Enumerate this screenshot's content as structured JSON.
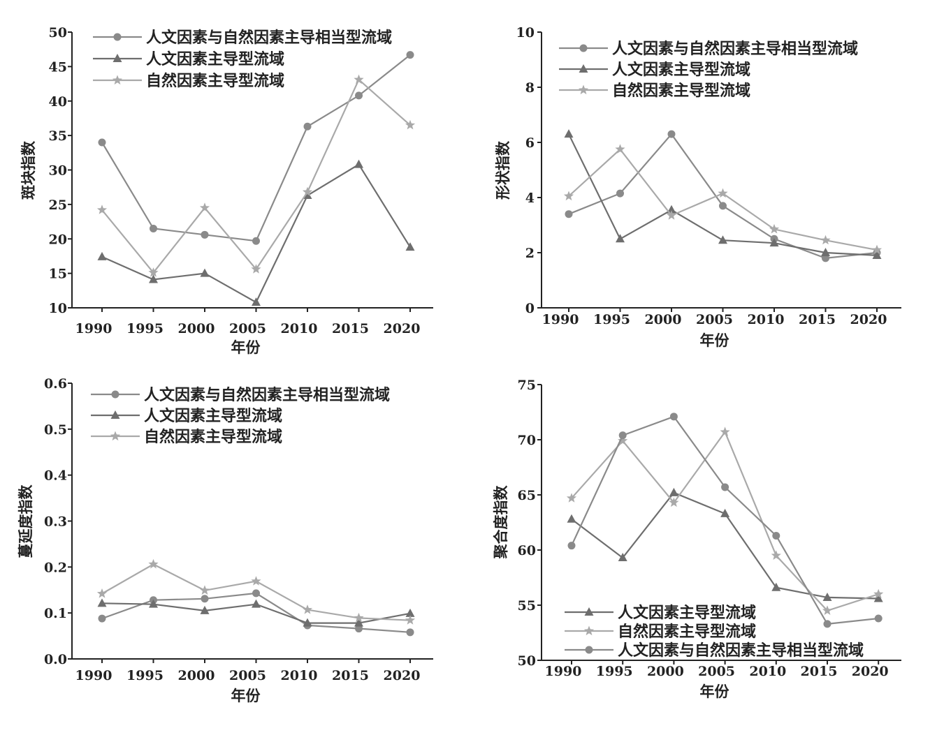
{
  "colors": {
    "series_circle": "#8a8a8a",
    "series_triangle": "#6e6e6e",
    "series_star": "#a9a9a9",
    "axis": "#222222"
  },
  "chart_data": [
    {
      "id": "patch",
      "type": "line",
      "xlabel": "年份",
      "ylabel": "斑块指数",
      "ylim": [
        10,
        50
      ],
      "yticks": [
        "10",
        "15",
        "20",
        "25",
        "30",
        "35",
        "40",
        "45",
        "50"
      ],
      "categories": [
        "1990",
        "1995",
        "2000",
        "2005",
        "2010",
        "2015",
        "2020"
      ],
      "legend_position": "top-left",
      "series": [
        {
          "name": "人文因素与自然因素主导相当型流域",
          "marker": "circle",
          "values": [
            34.0,
            21.5,
            20.6,
            19.7,
            36.3,
            40.8,
            46.7
          ]
        },
        {
          "name": "人文因素主导型流域",
          "marker": "triangle",
          "values": [
            17.4,
            14.1,
            15.0,
            10.8,
            26.3,
            30.8,
            18.8
          ]
        },
        {
          "name": "自然因素主导型流域",
          "marker": "star",
          "values": [
            24.2,
            15.1,
            24.5,
            15.6,
            26.8,
            43.1,
            36.5
          ]
        }
      ]
    },
    {
      "id": "shape",
      "type": "line",
      "xlabel": "年份",
      "ylabel": "形状指数",
      "ylim": [
        0,
        10
      ],
      "yticks": [
        "0",
        "2",
        "4",
        "6",
        "8",
        "10"
      ],
      "categories": [
        "1990",
        "1995",
        "2000",
        "2005",
        "2010",
        "2015",
        "2020"
      ],
      "legend_position": "top-left",
      "series": [
        {
          "name": "人文因素与自然因素主导相当型流域",
          "marker": "circle",
          "values": [
            3.4,
            4.15,
            6.3,
            3.7,
            2.5,
            1.8,
            2.0
          ]
        },
        {
          "name": "人文因素主导型流域",
          "marker": "triangle",
          "values": [
            6.3,
            2.5,
            3.55,
            2.45,
            2.35,
            2.0,
            1.9
          ]
        },
        {
          "name": "自然因素主导型流域",
          "marker": "star",
          "values": [
            4.05,
            5.75,
            3.35,
            4.15,
            2.85,
            2.45,
            2.1
          ]
        }
      ]
    },
    {
      "id": "spread",
      "type": "line",
      "xlabel": "年份",
      "ylabel": "蔓延度指数",
      "ylim": [
        0,
        0.6
      ],
      "yticks": [
        "0.0",
        "0.1",
        "0.2",
        "0.3",
        "0.4",
        "0.5",
        "0.6"
      ],
      "categories": [
        "1990",
        "1995",
        "2000",
        "2005",
        "2010",
        "2015",
        "2020"
      ],
      "legend_position": "top-left",
      "series": [
        {
          "name": "人文因素与自然因素主导相当型流域",
          "marker": "circle",
          "values": [
            0.088,
            0.128,
            0.131,
            0.143,
            0.073,
            0.066,
            0.058
          ]
        },
        {
          "name": "人文因素主导型流域",
          "marker": "triangle",
          "values": [
            0.121,
            0.119,
            0.105,
            0.119,
            0.078,
            0.078,
            0.099
          ]
        },
        {
          "name": "自然因素主导型流域",
          "marker": "star",
          "values": [
            0.142,
            0.206,
            0.149,
            0.169,
            0.107,
            0.089,
            0.084
          ]
        }
      ]
    },
    {
      "id": "cohesion",
      "type": "line",
      "xlabel": "年份",
      "ylabel": "聚合度指数",
      "ylim": [
        50,
        75
      ],
      "yticks": [
        "50",
        "55",
        "60",
        "65",
        "70",
        "75"
      ],
      "categories": [
        "1990",
        "1995",
        "2000",
        "2005",
        "2010",
        "2015",
        "2020"
      ],
      "legend_position": "bottom-left",
      "series": [
        {
          "name": "人文因素主导型流域",
          "marker": "triangle",
          "values": [
            62.8,
            59.3,
            65.2,
            63.3,
            56.6,
            55.7,
            55.6
          ]
        },
        {
          "name": "自然因素主导型流域",
          "marker": "star",
          "values": [
            64.7,
            69.9,
            64.3,
            70.7,
            59.5,
            54.5,
            56.0
          ]
        },
        {
          "name": "人文因素与自然因素主导相当型流域",
          "marker": "circle",
          "values": [
            60.4,
            70.4,
            72.1,
            65.7,
            61.3,
            53.3,
            53.8
          ]
        }
      ]
    }
  ]
}
